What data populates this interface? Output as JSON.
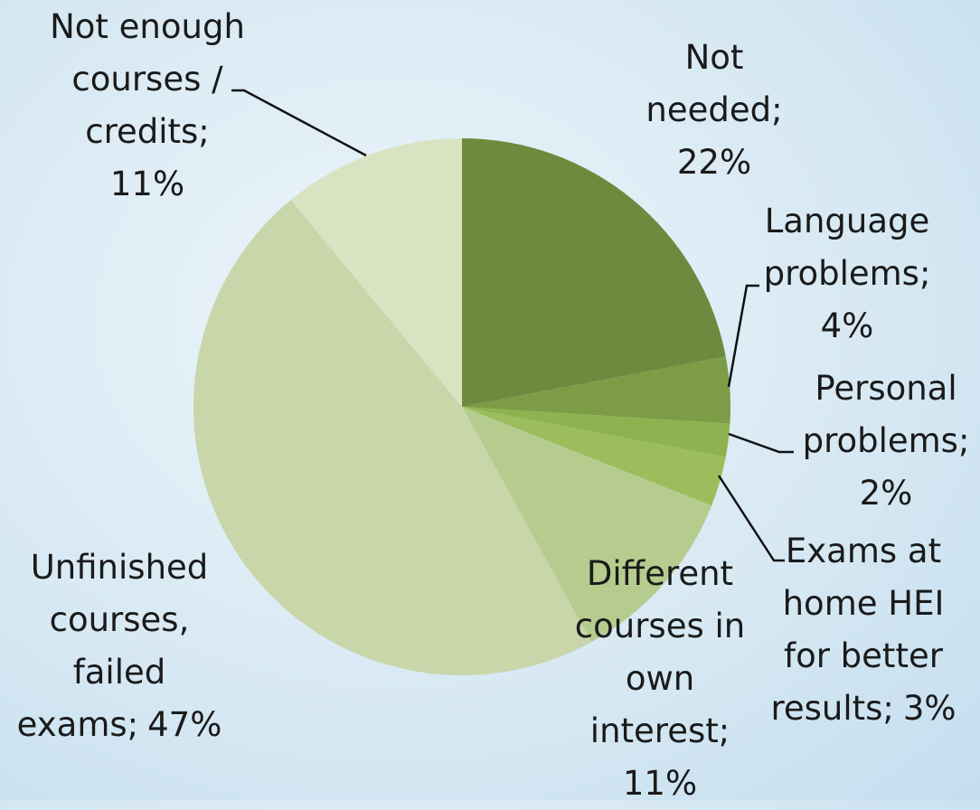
{
  "chart_data": {
    "type": "pie",
    "categories": [
      "Not\nneeded;",
      "Language\nproblems;",
      "Personal\nproblems;",
      "Exams at\nhome HEI\nfor better\nresults;",
      "Different\ncourses in\nown\ninterest;",
      "Unfinished\ncourses,\nfailed\nexams;",
      "Not enough\ncourses /\ncredits;"
    ],
    "values": [
      22,
      4,
      2,
      3,
      11,
      47,
      11
    ],
    "value_labels": [
      "22%",
      "4%",
      "2%",
      "3%",
      "11%",
      "47%",
      "11%"
    ],
    "colors": [
      "#6e8a3e",
      "#7c9c46",
      "#8db24f",
      "#9bbd5c",
      "#b6cc8f",
      "#c8d6aa",
      "#d9e3c2"
    ]
  }
}
